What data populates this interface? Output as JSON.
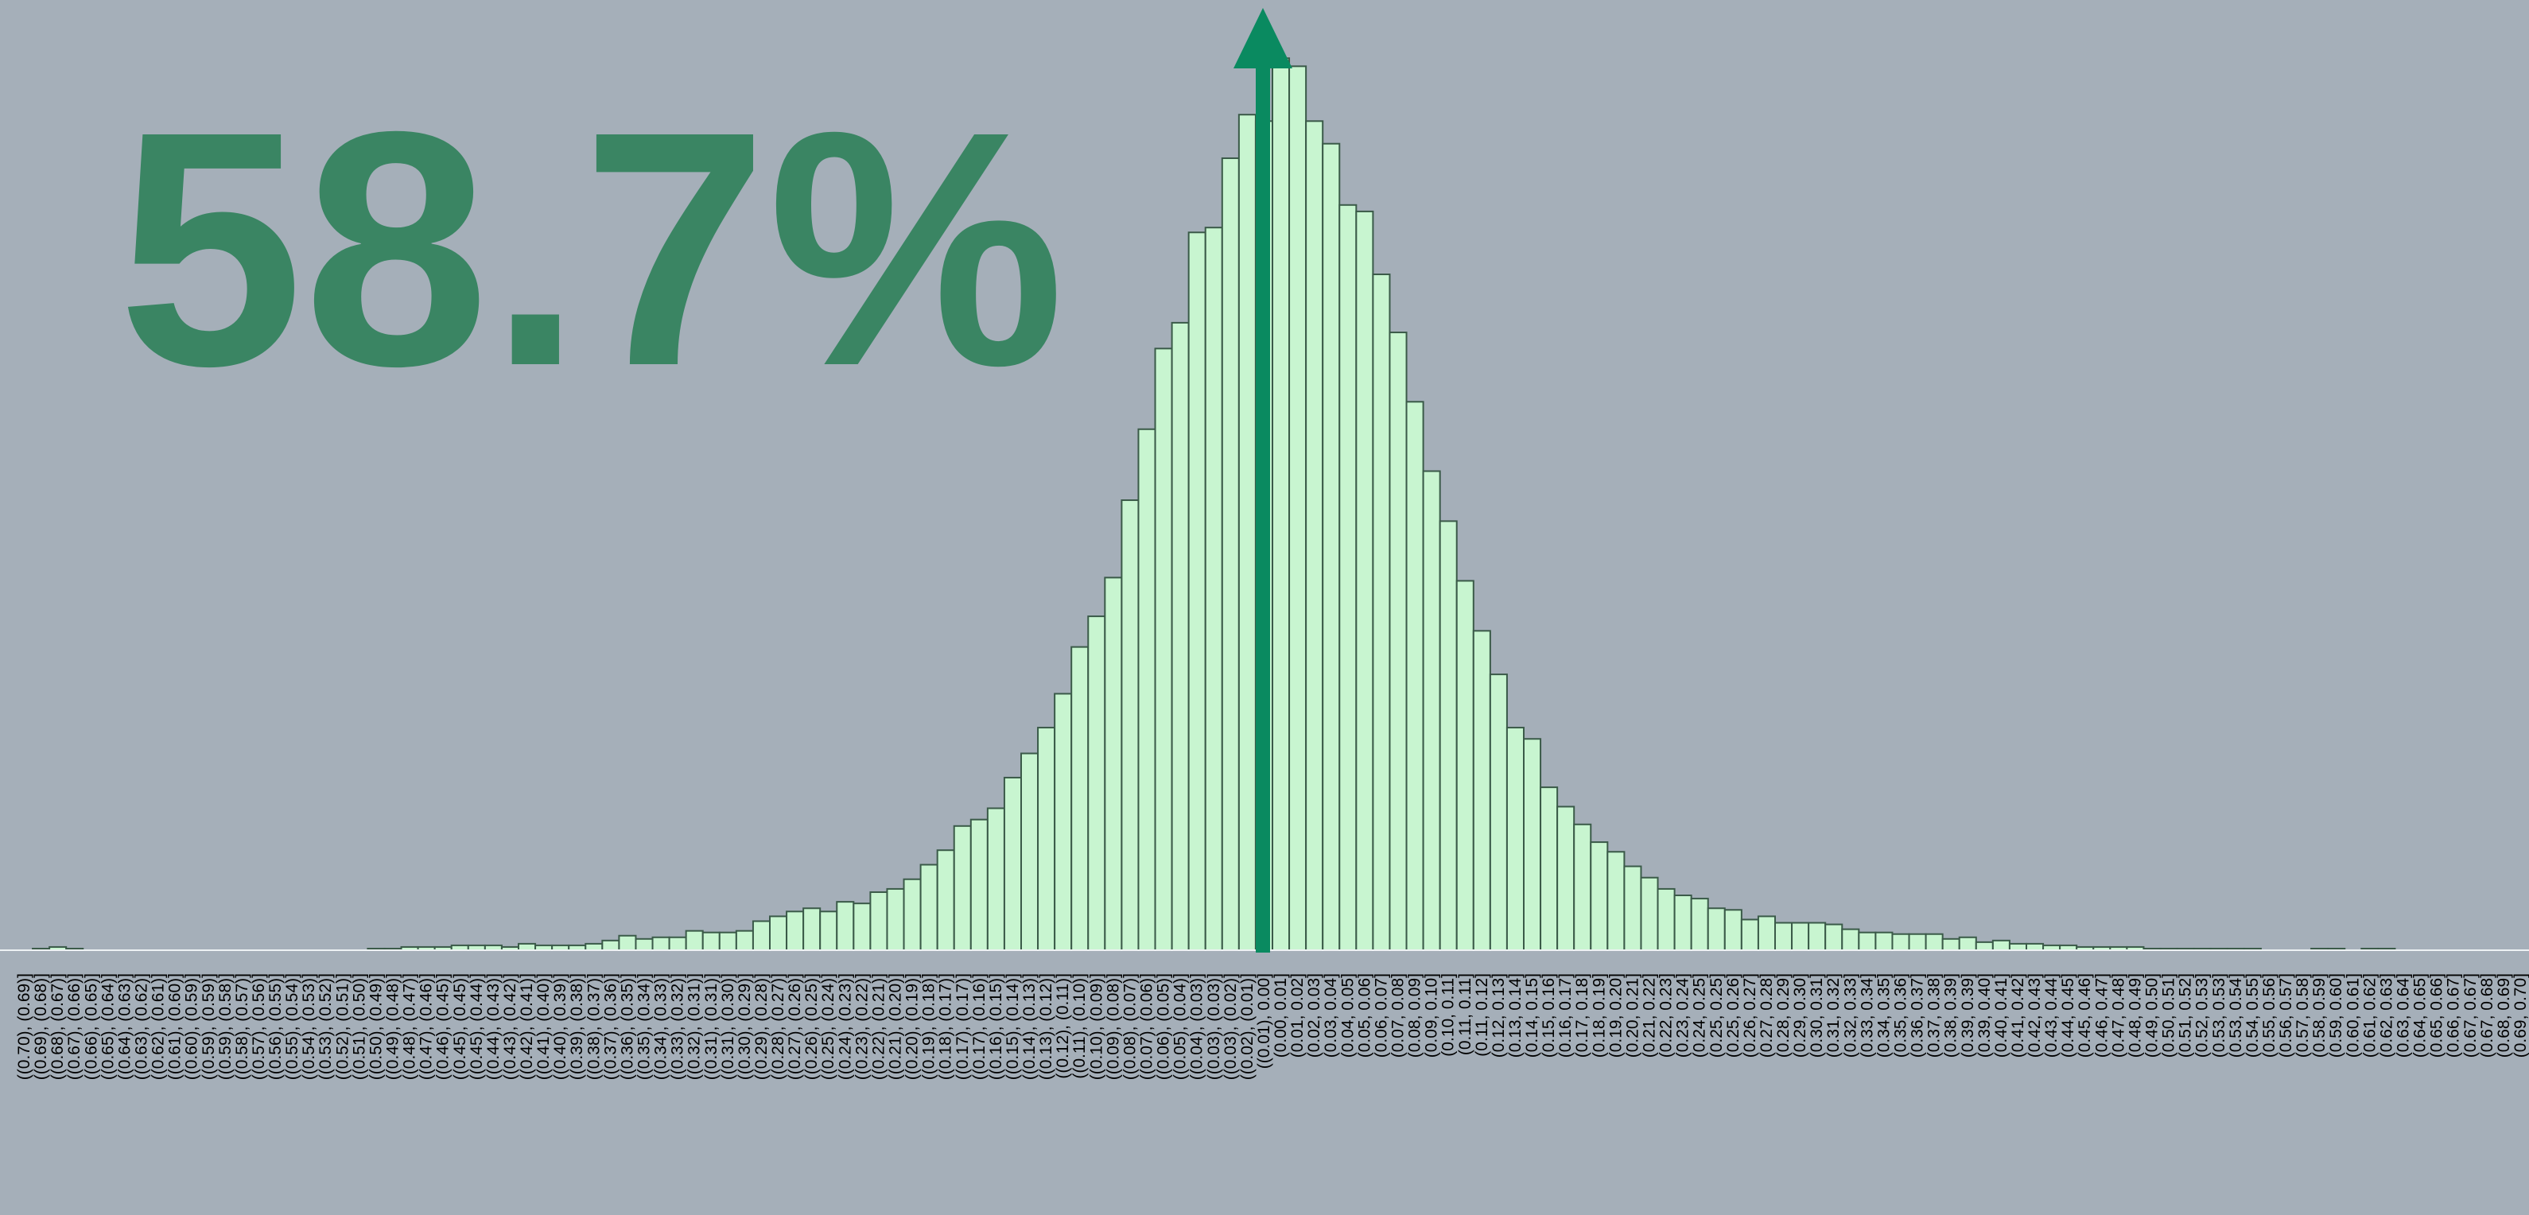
{
  "chart_data": {
    "type": "bar",
    "annotation": "58.7%",
    "color": "#c8f5d0",
    "edge_color": "#3a5a48",
    "ylim": [
      0,
      560
    ],
    "categories": [
      "((0.70), (0.69)]",
      "((0.69), (0.68)]",
      "((0.68), (0.67)]",
      "((0.67), (0.66)]",
      "((0.66), (0.65)]",
      "((0.65), (0.64)]",
      "((0.64), (0.63)]",
      "((0.63), (0.62)]",
      "((0.62), (0.61)]",
      "((0.61), (0.60)]",
      "((0.60), (0.59)]",
      "((0.59), (0.59)]",
      "((0.59), (0.58)]",
      "((0.58), (0.57)]",
      "((0.57), (0.56)]",
      "((0.56), (0.55)]",
      "((0.55), (0.54)]",
      "((0.54), (0.53)]",
      "((0.53), (0.52)]",
      "((0.52), (0.51)]",
      "((0.51), (0.50)]",
      "((0.50), (0.49)]",
      "((0.49), (0.48)]",
      "((0.48), (0.47)]",
      "((0.47), (0.46)]",
      "((0.46), (0.45)]",
      "((0.45), (0.45)]",
      "((0.45), (0.44)]",
      "((0.44), (0.43)]",
      "((0.43), (0.42)]",
      "((0.42), (0.41)]",
      "((0.41), (0.40)]",
      "((0.40), (0.39)]",
      "((0.39), (0.38)]",
      "((0.38), (0.37)]",
      "((0.37), (0.36)]",
      "((0.36), (0.35)]",
      "((0.35), (0.34)]",
      "((0.34), (0.33)]",
      "((0.33), (0.32)]",
      "((0.32), (0.31)]",
      "((0.31), (0.31)]",
      "((0.31), (0.30)]",
      "((0.30), (0.29)]",
      "((0.29), (0.28)]",
      "((0.28), (0.27)]",
      "((0.27), (0.26)]",
      "((0.26), (0.25)]",
      "((0.25), (0.24)]",
      "((0.24), (0.23)]",
      "((0.23), (0.22)]",
      "((0.22), (0.21)]",
      "((0.21), (0.20)]",
      "((0.20), (0.19)]",
      "((0.19), (0.18)]",
      "((0.18), (0.17)]",
      "((0.17), (0.17)]",
      "((0.17), (0.16)]",
      "((0.16), (0.15)]",
      "((0.15), (0.14)]",
      "((0.14), (0.13)]",
      "((0.13), (0.12)]",
      "((0.12), (0.11)]",
      "((0.11), (0.10)]",
      "((0.10), (0.09)]",
      "((0.09), (0.08)]",
      "((0.08), (0.07)]",
      "((0.07), (0.06)]",
      "((0.06), (0.05)]",
      "((0.05), (0.04)]",
      "((0.04), (0.03)]",
      "((0.03), (0.03)]",
      "((0.03), (0.02)]",
      "((0.02), (0.01)]",
      "((0.01), 0.00]",
      "(0.00, 0.01]",
      "(0.01, 0.02]",
      "(0.02, 0.03]",
      "(0.03, 0.04]",
      "(0.04, 0.05]",
      "(0.05, 0.06]",
      "(0.06, 0.07]",
      "(0.07, 0.08]",
      "(0.08, 0.09]",
      "(0.09, 0.10]",
      "(0.10, 0.11]",
      "(0.11, 0.11]",
      "(0.11, 0.12]",
      "(0.12, 0.13]",
      "(0.13, 0.14]",
      "(0.14, 0.15]",
      "(0.15, 0.16]",
      "(0.16, 0.17]",
      "(0.17, 0.18]",
      "(0.18, 0.19]",
      "(0.19, 0.20]",
      "(0.20, 0.21]",
      "(0.21, 0.22]",
      "(0.22, 0.23]",
      "(0.23, 0.24]",
      "(0.24, 0.25]",
      "(0.25, 0.25]",
      "(0.25, 0.26]",
      "(0.26, 0.27]",
      "(0.27, 0.28]",
      "(0.28, 0.29]",
      "(0.29, 0.30]",
      "(0.30, 0.31]",
      "(0.31, 0.32]",
      "(0.32, 0.33]",
      "(0.33, 0.34]",
      "(0.34, 0.35]",
      "(0.35, 0.36]",
      "(0.36, 0.37]",
      "(0.37, 0.38]",
      "(0.38, 0.39]",
      "(0.39, 0.39]",
      "(0.39, 0.40]",
      "(0.40, 0.41]",
      "(0.41, 0.42]",
      "(0.42, 0.43]",
      "(0.43, 0.44]",
      "(0.44, 0.45]",
      "(0.45, 0.46]",
      "(0.46, 0.47]",
      "(0.47, 0.48]",
      "(0.48, 0.49]",
      "(0.49, 0.50]",
      "(0.50, 0.51]",
      "(0.51, 0.52]",
      "(0.52, 0.53]",
      "(0.53, 0.53]",
      "(0.53, 0.54]",
      "(0.54, 0.55]",
      "(0.55, 0.56]",
      "(0.56, 0.57]",
      "(0.57, 0.58]",
      "(0.58, 0.59]",
      "(0.59, 0.60]",
      "(0.60, 0.61]",
      "(0.61, 0.62]",
      "(0.62, 0.63]",
      "(0.63, 0.64]",
      "(0.64, 0.65]",
      "(0.65, 0.66]",
      "(0.66, 0.67]",
      "(0.67, 0.67]",
      "(0.67, 0.68]",
      "(0.68, 0.69]",
      "(0.69, 0.70]"
    ],
    "values": [
      0,
      1,
      2,
      1,
      0,
      0,
      0,
      0,
      0,
      0,
      0,
      0,
      0,
      0,
      0,
      0,
      0,
      0,
      0,
      0,
      0,
      1,
      1,
      2,
      2,
      2,
      3,
      3,
      3,
      2,
      4,
      3,
      3,
      3,
      4,
      6,
      9,
      7,
      8,
      8,
      12,
      11,
      11,
      12,
      18,
      21,
      24,
      26,
      24,
      30,
      29,
      36,
      38,
      44,
      53,
      62,
      77,
      81,
      88,
      107,
      122,
      138,
      159,
      188,
      207,
      231,
      279,
      323,
      373,
      389,
      445,
      448,
      491,
      518,
      514,
      553,
      548,
      514,
      500,
      462,
      458,
      419,
      383,
      340,
      297,
      266,
      229,
      198,
      171,
      138,
      131,
      101,
      89,
      78,
      67,
      61,
      52,
      45,
      38,
      34,
      32,
      26,
      25,
      19,
      21,
      17,
      17,
      17,
      16,
      13,
      11,
      11,
      10,
      10,
      10,
      7,
      8,
      5,
      6,
      4,
      4,
      3,
      3,
      2,
      2,
      2,
      2,
      1,
      1,
      1,
      1,
      1,
      1,
      1,
      0,
      0,
      0,
      1,
      1,
      0,
      1,
      1,
      0,
      0,
      0,
      0,
      0,
      0,
      0,
      0
    ]
  }
}
